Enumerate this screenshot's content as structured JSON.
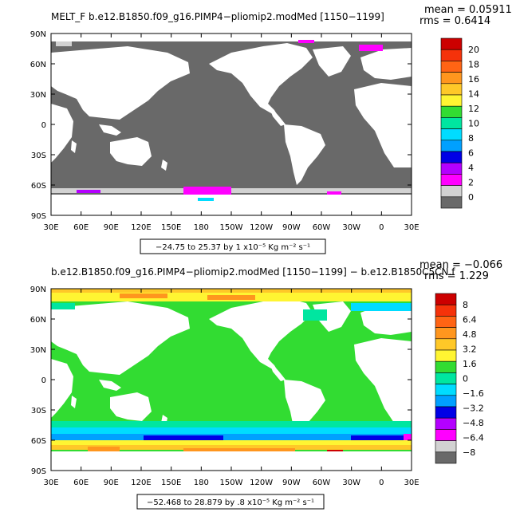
{
  "chart_data": [
    {
      "type": "heatmap",
      "variable": "MELT_F",
      "title": "MELT_F  b.e12.B1850.f09_g16.PIMP4−pliomip2.modMed  [1150−1199]",
      "stats": {
        "mean": "mean = 0.05911",
        "rms": "rms = 0.6414"
      },
      "x_ticks": [
        "30E",
        "60E",
        "90E",
        "120E",
        "150E",
        "180",
        "150W",
        "120W",
        "90W",
        "60W",
        "30W",
        "0",
        "30E"
      ],
      "y_ticks": [
        "90N",
        "60N",
        "30N",
        "0",
        "30S",
        "60S",
        "90S"
      ],
      "colorbar": {
        "labels": [
          "20",
          "18",
          "16",
          "14",
          "12",
          "10",
          "8",
          "6",
          "4",
          "2",
          "0"
        ],
        "colors": [
          "#CC0000",
          "#F5320A",
          "#FF6414",
          "#FF961E",
          "#FFC828",
          "#FFF532",
          "#32DC32",
          "#00E6A0",
          "#00DCFF",
          "#00A0FF",
          "#0000E6",
          "#B400FF",
          "#FF00FF",
          "#D2D2D2",
          "#696969"
        ]
      },
      "range_label": "−24.75 to 25.37 by 1 x10⁻⁵ Kg m⁻² s⁻¹"
    },
    {
      "type": "heatmap",
      "variable": "",
      "title": "b.e12.B1850.f09_g16.PIMP4−pliomip2.modMed  [1150−1199]  − b.e12.B1850C5CN.f",
      "stats": {
        "mean": "mean = −0.066",
        "rms": "rms = 1.229"
      },
      "x_ticks": [
        "30E",
        "60E",
        "90E",
        "120E",
        "150E",
        "180",
        "150W",
        "120W",
        "90W",
        "60W",
        "30W",
        "0",
        "30E"
      ],
      "y_ticks": [
        "90N",
        "60N",
        "30N",
        "0",
        "30S",
        "60S",
        "90S"
      ],
      "colorbar": {
        "labels": [
          "8",
          "6.4",
          "4.8",
          "3.2",
          "1.6",
          "0",
          "−1.6",
          "−3.2",
          "−4.8",
          "−6.4",
          "−8"
        ],
        "colors": [
          "#CC0000",
          "#F5320A",
          "#FF6414",
          "#FF961E",
          "#FFC828",
          "#FFF532",
          "#32DC32",
          "#00E6A0",
          "#00DCFF",
          "#00A0FF",
          "#0000E6",
          "#B400FF",
          "#FF00FF",
          "#D2D2D2",
          "#696969"
        ]
      },
      "range_label": "−52.468 to 28.879 by .8 x10⁻⁵ Kg m⁻² s⁻¹"
    }
  ]
}
